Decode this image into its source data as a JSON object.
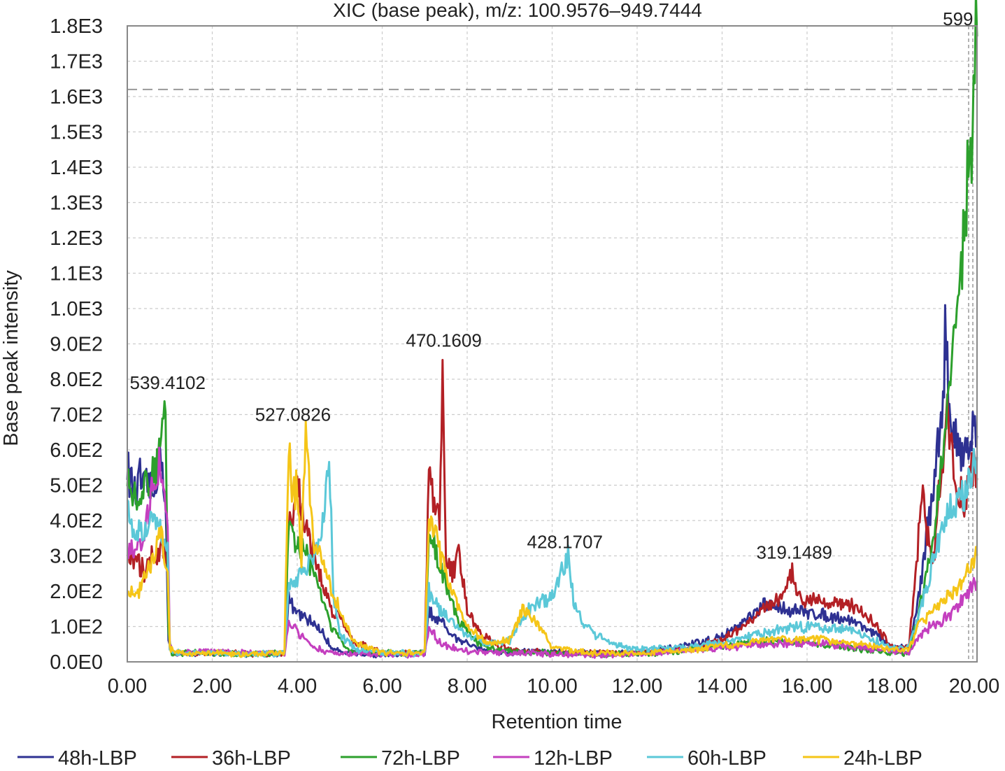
{
  "chart_data": {
    "type": "line",
    "title": "XIC (base peak), m/z: 100.9576–949.7444",
    "xlabel": "Retention time",
    "ylabel": "Base peak intensity",
    "xlim": [
      0,
      20
    ],
    "ylim": [
      0,
      1800
    ],
    "grid": true,
    "legend_position": "bottom",
    "x_ticks": [
      "0.00",
      "2.00",
      "4.00",
      "6.00",
      "8.00",
      "10.00",
      "12.00",
      "14.00",
      "16.00",
      "18.00",
      "20.00"
    ],
    "y_ticks": [
      "0.0E0",
      "1.0E2",
      "2.0E2",
      "3.0E2",
      "4.0E2",
      "5.0E2",
      "6.0E2",
      "7.0E2",
      "8.0E2",
      "9.0E2",
      "1.0E3",
      "1.1E3",
      "1.2E3",
      "1.3E3",
      "1.4E3",
      "1.5E3",
      "1.6E3",
      "1.7E3",
      "1.8E3"
    ],
    "threshold_line": 1620,
    "annotations": [
      {
        "text": "539.4102",
        "x": 0.95,
        "y": 760
      },
      {
        "text": "527.0826",
        "x": 3.9,
        "y": 670
      },
      {
        "text": "470.1609",
        "x": 7.45,
        "y": 880
      },
      {
        "text": "428.1707",
        "x": 10.3,
        "y": 310
      },
      {
        "text": "319.1489",
        "x": 15.7,
        "y": 280
      },
      {
        "text": "599",
        "x": 19.75,
        "y": 1790
      }
    ],
    "series": [
      {
        "name": "48h-LBP",
        "color": "#2e3192",
        "points": [
          [
            0,
            560
          ],
          [
            0.1,
            500
          ],
          [
            0.2,
            470
          ],
          [
            0.3,
            520
          ],
          [
            0.4,
            480
          ],
          [
            0.5,
            510
          ],
          [
            0.6,
            460
          ],
          [
            0.7,
            540
          ],
          [
            0.8,
            600
          ],
          [
            0.9,
            450
          ],
          [
            0.97,
            60
          ],
          [
            1.05,
            25
          ],
          [
            2,
            25
          ],
          [
            3,
            22
          ],
          [
            3.7,
            25
          ],
          [
            3.8,
            180
          ],
          [
            3.9,
            150
          ],
          [
            4.0,
            140
          ],
          [
            4.2,
            120
          ],
          [
            4.4,
            110
          ],
          [
            4.6,
            80
          ],
          [
            4.8,
            40
          ],
          [
            5.2,
            25
          ],
          [
            6,
            20
          ],
          [
            7.0,
            20
          ],
          [
            7.1,
            150
          ],
          [
            7.2,
            120
          ],
          [
            7.4,
            110
          ],
          [
            7.6,
            80
          ],
          [
            7.8,
            60
          ],
          [
            8.2,
            45
          ],
          [
            8.6,
            30
          ],
          [
            9.0,
            25
          ],
          [
            9.5,
            30
          ],
          [
            10,
            28
          ],
          [
            11,
            25
          ],
          [
            12,
            25
          ],
          [
            13,
            40
          ],
          [
            14,
            70
          ],
          [
            14.5,
            110
          ],
          [
            15.0,
            160
          ],
          [
            15.5,
            150
          ],
          [
            16.0,
            140
          ],
          [
            16.5,
            130
          ],
          [
            17.0,
            120
          ],
          [
            17.5,
            90
          ],
          [
            18.0,
            40
          ],
          [
            18.4,
            40
          ],
          [
            18.6,
            160
          ],
          [
            18.8,
            350
          ],
          [
            19.0,
            500
          ],
          [
            19.1,
            650
          ],
          [
            19.2,
            750
          ],
          [
            19.25,
            920
          ],
          [
            19.35,
            720
          ],
          [
            19.5,
            620
          ],
          [
            19.7,
            600
          ],
          [
            19.85,
            650
          ],
          [
            20,
            640
          ]
        ]
      },
      {
        "name": "36h-LBP",
        "color": "#b32025",
        "points": [
          [
            0,
            300
          ],
          [
            0.2,
            280
          ],
          [
            0.4,
            260
          ],
          [
            0.6,
            300
          ],
          [
            0.8,
            320
          ],
          [
            0.95,
            280
          ],
          [
            1.0,
            40
          ],
          [
            1.1,
            25
          ],
          [
            2,
            25
          ],
          [
            3,
            22
          ],
          [
            3.7,
            25
          ],
          [
            3.8,
            400
          ],
          [
            3.9,
            420
          ],
          [
            4.0,
            500
          ],
          [
            4.2,
            380
          ],
          [
            4.4,
            300
          ],
          [
            4.6,
            220
          ],
          [
            4.8,
            150
          ],
          [
            5.0,
            130
          ],
          [
            5.3,
            60
          ],
          [
            6,
            25
          ],
          [
            7.0,
            25
          ],
          [
            7.1,
            550
          ],
          [
            7.2,
            450
          ],
          [
            7.35,
            400
          ],
          [
            7.42,
            860
          ],
          [
            7.5,
            280
          ],
          [
            7.7,
            250
          ],
          [
            7.8,
            320
          ],
          [
            8.0,
            150
          ],
          [
            8.3,
            80
          ],
          [
            8.8,
            40
          ],
          [
            9.3,
            30
          ],
          [
            10,
            25
          ],
          [
            11,
            25
          ],
          [
            12,
            25
          ],
          [
            13,
            35
          ],
          [
            14,
            60
          ],
          [
            14.5,
            100
          ],
          [
            15.0,
            150
          ],
          [
            15.5,
            190
          ],
          [
            15.65,
            260
          ],
          [
            15.8,
            180
          ],
          [
            16.2,
            180
          ],
          [
            16.6,
            170
          ],
          [
            17.0,
            160
          ],
          [
            17.3,
            140
          ],
          [
            17.5,
            120
          ],
          [
            18.0,
            40
          ],
          [
            18.4,
            40
          ],
          [
            18.6,
            300
          ],
          [
            18.7,
            500
          ],
          [
            18.9,
            300
          ],
          [
            19.0,
            280
          ],
          [
            19.1,
            480
          ],
          [
            19.3,
            700
          ],
          [
            19.5,
            500
          ],
          [
            19.7,
            460
          ],
          [
            19.9,
            560
          ],
          [
            20,
            520
          ]
        ]
      },
      {
        "name": "72h-LBP",
        "color": "#2ca02c",
        "points": [
          [
            0,
            500
          ],
          [
            0.2,
            470
          ],
          [
            0.4,
            480
          ],
          [
            0.6,
            520
          ],
          [
            0.8,
            600
          ],
          [
            0.9,
            740
          ],
          [
            0.97,
            80
          ],
          [
            1.05,
            25
          ],
          [
            2,
            25
          ],
          [
            3,
            22
          ],
          [
            3.7,
            25
          ],
          [
            3.8,
            380
          ],
          [
            3.9,
            350
          ],
          [
            4.0,
            330
          ],
          [
            4.2,
            300
          ],
          [
            4.4,
            250
          ],
          [
            4.6,
            180
          ],
          [
            4.8,
            100
          ],
          [
            5.2,
            30
          ],
          [
            6,
            25
          ],
          [
            7.0,
            25
          ],
          [
            7.1,
            350
          ],
          [
            7.3,
            300
          ],
          [
            7.5,
            220
          ],
          [
            7.8,
            120
          ],
          [
            8.2,
            60
          ],
          [
            8.6,
            35
          ],
          [
            9.2,
            30
          ],
          [
            10,
            25
          ],
          [
            11,
            22
          ],
          [
            12,
            22
          ],
          [
            13,
            30
          ],
          [
            14,
            45
          ],
          [
            15,
            60
          ],
          [
            16,
            55
          ],
          [
            17,
            40
          ],
          [
            18,
            25
          ],
          [
            18.4,
            25
          ],
          [
            18.6,
            120
          ],
          [
            18.9,
            300
          ],
          [
            19.1,
            480
          ],
          [
            19.2,
            600
          ],
          [
            19.4,
            900
          ],
          [
            19.6,
            1100
          ],
          [
            19.75,
            1300
          ],
          [
            19.85,
            1450
          ],
          [
            19.92,
            1650
          ],
          [
            20,
            1770
          ]
        ]
      },
      {
        "name": "12h-LBP",
        "color": "#c43fbf",
        "points": [
          [
            0,
            320
          ],
          [
            0.2,
            300
          ],
          [
            0.4,
            350
          ],
          [
            0.6,
            500
          ],
          [
            0.8,
            560
          ],
          [
            0.95,
            400
          ],
          [
            1.0,
            40
          ],
          [
            1.1,
            25
          ],
          [
            2,
            30
          ],
          [
            3,
            25
          ],
          [
            3.7,
            25
          ],
          [
            3.8,
            120
          ],
          [
            3.9,
            100
          ],
          [
            4.0,
            90
          ],
          [
            4.2,
            60
          ],
          [
            4.4,
            40
          ],
          [
            4.8,
            25
          ],
          [
            6,
            20
          ],
          [
            7.0,
            20
          ],
          [
            7.1,
            100
          ],
          [
            7.3,
            60
          ],
          [
            7.6,
            40
          ],
          [
            8.0,
            30
          ],
          [
            9,
            25
          ],
          [
            10,
            22
          ],
          [
            11,
            20
          ],
          [
            12,
            22
          ],
          [
            13,
            30
          ],
          [
            14,
            40
          ],
          [
            15,
            50
          ],
          [
            16,
            55
          ],
          [
            17,
            45
          ],
          [
            18,
            30
          ],
          [
            18.4,
            25
          ],
          [
            18.6,
            70
          ],
          [
            18.9,
            100
          ],
          [
            19.2,
            120
          ],
          [
            19.5,
            150
          ],
          [
            19.8,
            200
          ],
          [
            20,
            230
          ]
        ]
      },
      {
        "name": "60h-LBP",
        "color": "#5bc8d8",
        "points": [
          [
            0,
            420
          ],
          [
            0.2,
            380
          ],
          [
            0.4,
            360
          ],
          [
            0.6,
            400
          ],
          [
            0.8,
            380
          ],
          [
            0.95,
            320
          ],
          [
            1.0,
            40
          ],
          [
            1.1,
            25
          ],
          [
            2,
            25
          ],
          [
            3,
            22
          ],
          [
            3.7,
            25
          ],
          [
            3.8,
            200
          ],
          [
            3.9,
            220
          ],
          [
            4.1,
            260
          ],
          [
            4.3,
            280
          ],
          [
            4.5,
            320
          ],
          [
            4.7,
            500
          ],
          [
            4.75,
            600
          ],
          [
            4.85,
            200
          ],
          [
            5.0,
            80
          ],
          [
            5.4,
            35
          ],
          [
            6,
            25
          ],
          [
            7.0,
            25
          ],
          [
            7.1,
            200
          ],
          [
            7.3,
            160
          ],
          [
            7.6,
            120
          ],
          [
            8.0,
            80
          ],
          [
            8.5,
            50
          ],
          [
            9.0,
            60
          ],
          [
            9.4,
            140
          ],
          [
            9.7,
            170
          ],
          [
            10.0,
            190
          ],
          [
            10.2,
            250
          ],
          [
            10.4,
            300
          ],
          [
            10.5,
            170
          ],
          [
            10.7,
            110
          ],
          [
            11.0,
            80
          ],
          [
            11.5,
            50
          ],
          [
            12,
            35
          ],
          [
            13,
            40
          ],
          [
            14,
            55
          ],
          [
            15,
            80
          ],
          [
            15.5,
            95
          ],
          [
            16,
            100
          ],
          [
            17,
            90
          ],
          [
            18,
            40
          ],
          [
            18.4,
            40
          ],
          [
            18.6,
            120
          ],
          [
            18.9,
            250
          ],
          [
            19.2,
            400
          ],
          [
            19.5,
            450
          ],
          [
            19.8,
            500
          ],
          [
            20,
            580
          ]
        ]
      },
      {
        "name": "24h-LBP",
        "color": "#f5c518",
        "points": [
          [
            0,
            200
          ],
          [
            0.2,
            180
          ],
          [
            0.4,
            240
          ],
          [
            0.6,
            300
          ],
          [
            0.8,
            360
          ],
          [
            0.95,
            260
          ],
          [
            1.0,
            40
          ],
          [
            1.1,
            25
          ],
          [
            2,
            25
          ],
          [
            3,
            22
          ],
          [
            3.7,
            25
          ],
          [
            3.8,
            650
          ],
          [
            3.9,
            450
          ],
          [
            4.0,
            520
          ],
          [
            4.1,
            300
          ],
          [
            4.2,
            630
          ],
          [
            4.4,
            350
          ],
          [
            4.6,
            300
          ],
          [
            4.8,
            200
          ],
          [
            5.0,
            150
          ],
          [
            5.3,
            60
          ],
          [
            6,
            25
          ],
          [
            7.0,
            25
          ],
          [
            7.1,
            420
          ],
          [
            7.3,
            330
          ],
          [
            7.5,
            250
          ],
          [
            7.7,
            180
          ],
          [
            8.0,
            100
          ],
          [
            8.5,
            50
          ],
          [
            9.0,
            60
          ],
          [
            9.3,
            150
          ],
          [
            9.6,
            120
          ],
          [
            10,
            40
          ],
          [
            11,
            25
          ],
          [
            12,
            25
          ],
          [
            13,
            30
          ],
          [
            14,
            45
          ],
          [
            15,
            60
          ],
          [
            16,
            65
          ],
          [
            17,
            55
          ],
          [
            18,
            35
          ],
          [
            18.4,
            35
          ],
          [
            18.6,
            100
          ],
          [
            18.9,
            140
          ],
          [
            19.2,
            180
          ],
          [
            19.5,
            200
          ],
          [
            19.8,
            250
          ],
          [
            20,
            300
          ]
        ]
      }
    ]
  }
}
